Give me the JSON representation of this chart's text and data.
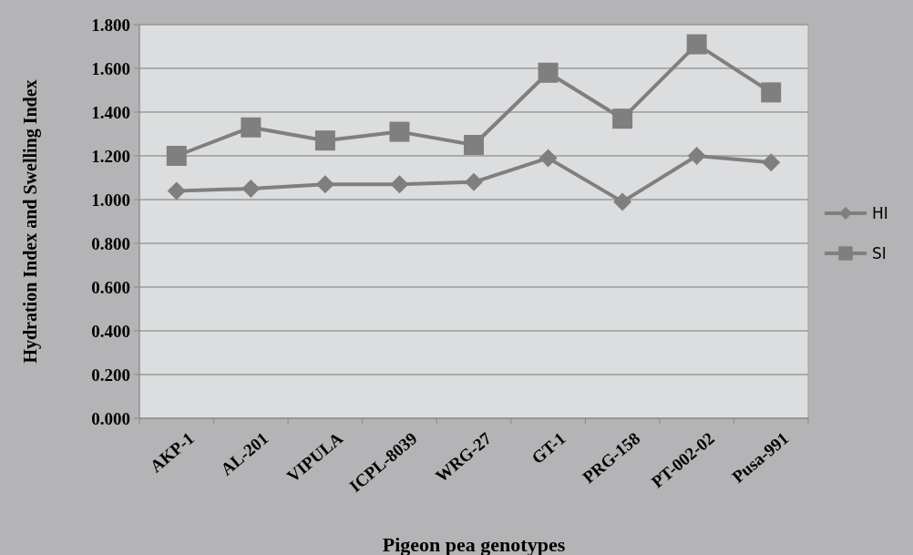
{
  "chart_data": {
    "type": "line",
    "xlabel": "Pigeon pea genotypes",
    "ylabel": "Hydration Index and Swelling Index",
    "categories": [
      "AKP-1",
      "AL-201",
      "VIPULA",
      "ICPL-8039",
      "WRG-27",
      "GT-1",
      "PRG-158",
      "PT-002-02",
      "Pusa-991"
    ],
    "series": [
      {
        "name": "HI",
        "color": "#7f7f7f",
        "marker": "diamond",
        "values": [
          1.04,
          1.05,
          1.07,
          1.07,
          1.08,
          1.19,
          0.99,
          1.2,
          1.17
        ]
      },
      {
        "name": "SI",
        "color": "#7f7f7f",
        "marker": "square",
        "values": [
          1.2,
          1.33,
          1.27,
          1.31,
          1.25,
          1.58,
          1.37,
          1.71,
          1.49
        ]
      }
    ],
    "ylim": [
      0,
      1.8
    ],
    "yticks": [
      {
        "value": 0,
        "label": "0.000"
      },
      {
        "value": 0.2,
        "label": "0.200"
      },
      {
        "value": 0.4,
        "label": "0.400"
      },
      {
        "value": 0.6,
        "label": "0.600"
      },
      {
        "value": 0.8,
        "label": "0.800"
      },
      {
        "value": 1,
        "label": "1.000"
      },
      {
        "value": 1.2,
        "label": "1.200"
      },
      {
        "value": 1.4,
        "label": "1.400"
      },
      {
        "value": 1.6,
        "label": "1.600"
      },
      {
        "value": 1.8,
        "label": "1.800"
      }
    ],
    "grid": "y",
    "legend": "right"
  }
}
